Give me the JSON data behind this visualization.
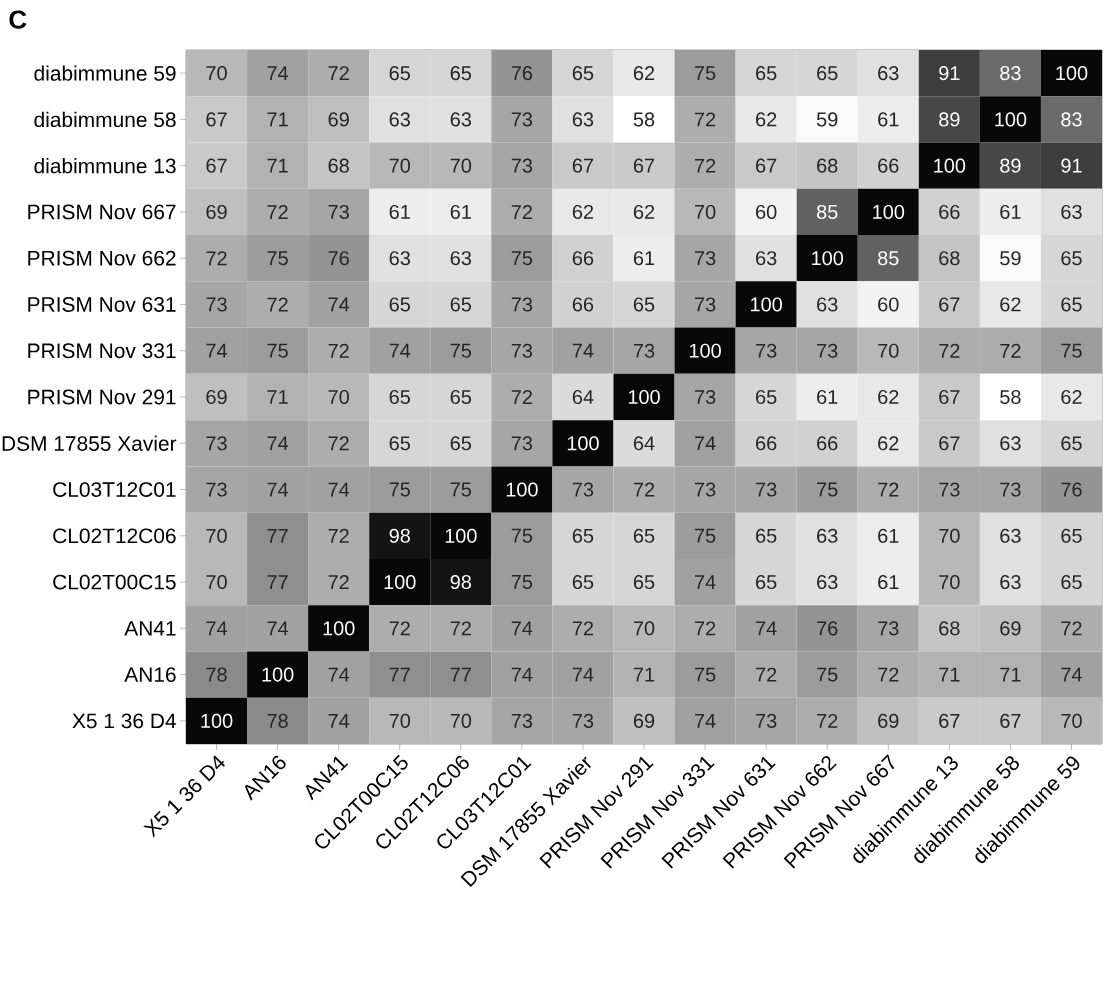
{
  "chart_data": {
    "type": "heatmap",
    "title": "C",
    "data_labels": true,
    "categories": [
      "X5 1 36 D4",
      "AN16",
      "AN41",
      "CL02T00C15",
      "CL02T12C06",
      "CL03T12C01",
      "DSM 17855 Xavier",
      "PRISM Nov 291",
      "PRISM Nov 331",
      "PRISM Nov 631",
      "PRISM Nov 662",
      "PRISM Nov 667",
      "diabimmune 13",
      "diabimmune 58",
      "diabimmune 59"
    ],
    "y_categories": [
      "diabimmune 59",
      "diabimmune 58",
      "diabimmune 13",
      "PRISM Nov 667",
      "PRISM Nov 662",
      "PRISM Nov 631",
      "PRISM Nov 331",
      "PRISM Nov 291",
      "DSM 17855 Xavier",
      "CL03T12C01",
      "CL02T12C06",
      "CL02T00C15",
      "AN41",
      "AN16",
      "X5 1 36 D4"
    ],
    "cells": [
      [
        70,
        74,
        72,
        65,
        65,
        76,
        65,
        62,
        75,
        65,
        65,
        63,
        91,
        83,
        100
      ],
      [
        67,
        71,
        69,
        63,
        63,
        73,
        63,
        58,
        72,
        62,
        59,
        61,
        89,
        100,
        83
      ],
      [
        67,
        71,
        68,
        70,
        70,
        73,
        67,
        67,
        72,
        67,
        68,
        66,
        100,
        89,
        91
      ],
      [
        69,
        72,
        73,
        61,
        61,
        72,
        62,
        62,
        70,
        60,
        85,
        100,
        66,
        61,
        63
      ],
      [
        72,
        75,
        76,
        63,
        63,
        75,
        66,
        61,
        73,
        63,
        100,
        85,
        68,
        59,
        65
      ],
      [
        73,
        72,
        74,
        65,
        65,
        73,
        66,
        65,
        73,
        100,
        63,
        60,
        67,
        62,
        65
      ],
      [
        74,
        75,
        72,
        74,
        75,
        73,
        74,
        73,
        100,
        73,
        73,
        70,
        72,
        72,
        75
      ],
      [
        69,
        71,
        70,
        65,
        65,
        72,
        64,
        100,
        73,
        65,
        61,
        62,
        67,
        58,
        62
      ],
      [
        73,
        74,
        72,
        65,
        65,
        73,
        100,
        64,
        74,
        66,
        66,
        62,
        67,
        63,
        65
      ],
      [
        73,
        74,
        74,
        75,
        75,
        100,
        73,
        72,
        73,
        73,
        75,
        72,
        73,
        73,
        76
      ],
      [
        70,
        77,
        72,
        98,
        100,
        75,
        65,
        65,
        75,
        65,
        63,
        61,
        70,
        63,
        65
      ],
      [
        70,
        77,
        72,
        100,
        98,
        75,
        65,
        65,
        74,
        65,
        63,
        61,
        70,
        63,
        65
      ],
      [
        74,
        74,
        100,
        72,
        72,
        74,
        72,
        70,
        72,
        74,
        76,
        73,
        68,
        69,
        72
      ],
      [
        78,
        100,
        74,
        77,
        77,
        74,
        74,
        71,
        75,
        72,
        75,
        72,
        71,
        71,
        74
      ],
      [
        100,
        78,
        74,
        70,
        70,
        73,
        73,
        69,
        74,
        73,
        72,
        69,
        67,
        67,
        70
      ]
    ]
  }
}
